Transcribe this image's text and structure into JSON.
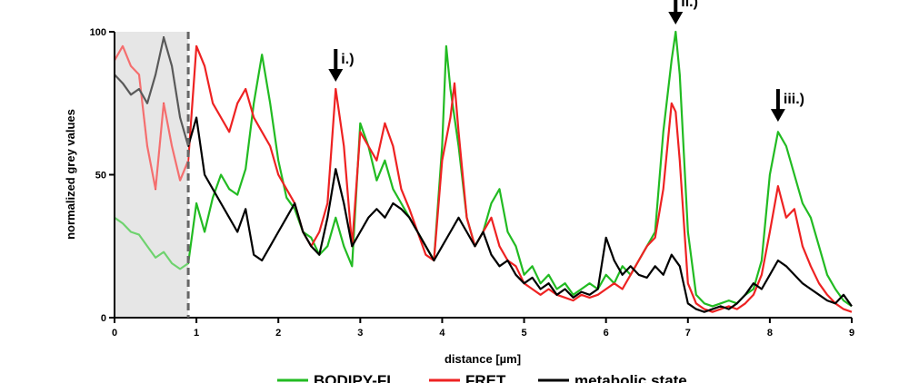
{
  "chart_data": {
    "type": "line",
    "title": "",
    "xlabel": "distance [µm]",
    "ylabel": "normalized grey values",
    "xlim": [
      0,
      9
    ],
    "ylim": [
      0,
      100
    ],
    "x_ticks": [
      "0",
      "1",
      "2",
      "3",
      "4",
      "5",
      "6",
      "7",
      "8",
      "9"
    ],
    "y_ticks": [
      "0",
      "50",
      "100"
    ],
    "grid": false,
    "legend_position": "bottom",
    "shaded_region": {
      "x_start": 0,
      "x_end": 0.9
    },
    "series": [
      {
        "name": "BODIPY-FL",
        "color": "#22bb22",
        "points": [
          [
            0,
            35
          ],
          [
            0.1,
            33
          ],
          [
            0.2,
            30
          ],
          [
            0.3,
            29
          ],
          [
            0.4,
            25
          ],
          [
            0.5,
            21
          ],
          [
            0.6,
            23
          ],
          [
            0.7,
            19
          ],
          [
            0.8,
            17
          ],
          [
            0.9,
            19
          ],
          [
            1.0,
            40
          ],
          [
            1.1,
            30
          ],
          [
            1.2,
            42
          ],
          [
            1.3,
            50
          ],
          [
            1.4,
            45
          ],
          [
            1.5,
            43
          ],
          [
            1.6,
            52
          ],
          [
            1.7,
            75
          ],
          [
            1.8,
            92
          ],
          [
            1.9,
            75
          ],
          [
            2.0,
            55
          ],
          [
            2.1,
            42
          ],
          [
            2.2,
            38
          ],
          [
            2.3,
            30
          ],
          [
            2.4,
            28
          ],
          [
            2.5,
            22
          ],
          [
            2.6,
            25
          ],
          [
            2.7,
            35
          ],
          [
            2.8,
            25
          ],
          [
            2.9,
            18
          ],
          [
            3.0,
            68
          ],
          [
            3.1,
            60
          ],
          [
            3.2,
            48
          ],
          [
            3.3,
            55
          ],
          [
            3.4,
            45
          ],
          [
            3.5,
            40
          ],
          [
            3.6,
            35
          ],
          [
            3.7,
            30
          ],
          [
            3.8,
            25
          ],
          [
            3.9,
            20
          ],
          [
            4.0,
            60
          ],
          [
            4.05,
            95
          ],
          [
            4.1,
            80
          ],
          [
            4.2,
            60
          ],
          [
            4.3,
            35
          ],
          [
            4.4,
            25
          ],
          [
            4.5,
            30
          ],
          [
            4.6,
            40
          ],
          [
            4.7,
            45
          ],
          [
            4.8,
            30
          ],
          [
            4.9,
            25
          ],
          [
            5.0,
            15
          ],
          [
            5.1,
            18
          ],
          [
            5.2,
            12
          ],
          [
            5.3,
            15
          ],
          [
            5.4,
            10
          ],
          [
            5.5,
            12
          ],
          [
            5.6,
            8
          ],
          [
            5.7,
            10
          ],
          [
            5.8,
            12
          ],
          [
            5.9,
            10
          ],
          [
            6.0,
            15
          ],
          [
            6.1,
            12
          ],
          [
            6.2,
            18
          ],
          [
            6.3,
            15
          ],
          [
            6.4,
            20
          ],
          [
            6.5,
            25
          ],
          [
            6.6,
            30
          ],
          [
            6.7,
            65
          ],
          [
            6.8,
            90
          ],
          [
            6.85,
            100
          ],
          [
            6.9,
            85
          ],
          [
            7.0,
            30
          ],
          [
            7.1,
            8
          ],
          [
            7.2,
            5
          ],
          [
            7.3,
            4
          ],
          [
            7.4,
            5
          ],
          [
            7.5,
            6
          ],
          [
            7.6,
            5
          ],
          [
            7.7,
            8
          ],
          [
            7.8,
            10
          ],
          [
            7.9,
            20
          ],
          [
            8.0,
            50
          ],
          [
            8.1,
            65
          ],
          [
            8.2,
            60
          ],
          [
            8.3,
            50
          ],
          [
            8.4,
            40
          ],
          [
            8.5,
            35
          ],
          [
            8.6,
            25
          ],
          [
            8.7,
            15
          ],
          [
            8.8,
            10
          ],
          [
            8.9,
            6
          ],
          [
            9.0,
            4
          ]
        ]
      },
      {
        "name": "FRET",
        "color": "#ee2222",
        "points": [
          [
            0,
            90
          ],
          [
            0.1,
            95
          ],
          [
            0.2,
            88
          ],
          [
            0.3,
            85
          ],
          [
            0.4,
            60
          ],
          [
            0.5,
            45
          ],
          [
            0.6,
            75
          ],
          [
            0.7,
            60
          ],
          [
            0.8,
            48
          ],
          [
            0.9,
            55
          ],
          [
            1.0,
            95
          ],
          [
            1.1,
            88
          ],
          [
            1.2,
            75
          ],
          [
            1.3,
            70
          ],
          [
            1.4,
            65
          ],
          [
            1.5,
            75
          ],
          [
            1.6,
            80
          ],
          [
            1.7,
            70
          ],
          [
            1.8,
            65
          ],
          [
            1.9,
            60
          ],
          [
            2.0,
            50
          ],
          [
            2.1,
            45
          ],
          [
            2.2,
            40
          ],
          [
            2.3,
            30
          ],
          [
            2.4,
            25
          ],
          [
            2.5,
            30
          ],
          [
            2.6,
            40
          ],
          [
            2.7,
            80
          ],
          [
            2.8,
            60
          ],
          [
            2.9,
            25
          ],
          [
            3.0,
            65
          ],
          [
            3.1,
            60
          ],
          [
            3.2,
            55
          ],
          [
            3.3,
            68
          ],
          [
            3.4,
            60
          ],
          [
            3.5,
            45
          ],
          [
            3.6,
            38
          ],
          [
            3.7,
            30
          ],
          [
            3.8,
            22
          ],
          [
            3.9,
            20
          ],
          [
            4.0,
            55
          ],
          [
            4.1,
            70
          ],
          [
            4.15,
            82
          ],
          [
            4.2,
            65
          ],
          [
            4.3,
            35
          ],
          [
            4.4,
            25
          ],
          [
            4.5,
            30
          ],
          [
            4.6,
            35
          ],
          [
            4.7,
            25
          ],
          [
            4.8,
            20
          ],
          [
            4.9,
            18
          ],
          [
            5.0,
            12
          ],
          [
            5.1,
            10
          ],
          [
            5.2,
            8
          ],
          [
            5.3,
            10
          ],
          [
            5.4,
            8
          ],
          [
            5.5,
            7
          ],
          [
            5.6,
            6
          ],
          [
            5.7,
            8
          ],
          [
            5.8,
            7
          ],
          [
            5.9,
            8
          ],
          [
            6.0,
            10
          ],
          [
            6.1,
            12
          ],
          [
            6.2,
            10
          ],
          [
            6.3,
            15
          ],
          [
            6.4,
            20
          ],
          [
            6.5,
            25
          ],
          [
            6.6,
            28
          ],
          [
            6.7,
            45
          ],
          [
            6.8,
            75
          ],
          [
            6.85,
            72
          ],
          [
            6.9,
            55
          ],
          [
            7.0,
            12
          ],
          [
            7.1,
            5
          ],
          [
            7.2,
            3
          ],
          [
            7.3,
            2
          ],
          [
            7.4,
            3
          ],
          [
            7.5,
            4
          ],
          [
            7.6,
            3
          ],
          [
            7.7,
            5
          ],
          [
            7.8,
            8
          ],
          [
            7.9,
            15
          ],
          [
            8.0,
            30
          ],
          [
            8.1,
            46
          ],
          [
            8.2,
            35
          ],
          [
            8.3,
            38
          ],
          [
            8.4,
            25
          ],
          [
            8.5,
            18
          ],
          [
            8.6,
            12
          ],
          [
            8.7,
            8
          ],
          [
            8.8,
            5
          ],
          [
            8.9,
            3
          ],
          [
            9.0,
            2
          ]
        ]
      },
      {
        "name": "metabolic state",
        "color": "#000000",
        "points": [
          [
            0,
            85
          ],
          [
            0.1,
            82
          ],
          [
            0.2,
            78
          ],
          [
            0.3,
            80
          ],
          [
            0.4,
            75
          ],
          [
            0.5,
            85
          ],
          [
            0.6,
            98
          ],
          [
            0.7,
            88
          ],
          [
            0.8,
            70
          ],
          [
            0.9,
            60
          ],
          [
            1.0,
            70
          ],
          [
            1.1,
            50
          ],
          [
            1.2,
            45
          ],
          [
            1.3,
            40
          ],
          [
            1.4,
            35
          ],
          [
            1.5,
            30
          ],
          [
            1.6,
            38
          ],
          [
            1.7,
            22
          ],
          [
            1.8,
            20
          ],
          [
            1.9,
            25
          ],
          [
            2.0,
            30
          ],
          [
            2.1,
            35
          ],
          [
            2.2,
            40
          ],
          [
            2.3,
            30
          ],
          [
            2.4,
            25
          ],
          [
            2.5,
            22
          ],
          [
            2.6,
            35
          ],
          [
            2.7,
            52
          ],
          [
            2.8,
            40
          ],
          [
            2.9,
            25
          ],
          [
            3.0,
            30
          ],
          [
            3.1,
            35
          ],
          [
            3.2,
            38
          ],
          [
            3.3,
            35
          ],
          [
            3.4,
            40
          ],
          [
            3.5,
            38
          ],
          [
            3.6,
            35
          ],
          [
            3.7,
            30
          ],
          [
            3.8,
            25
          ],
          [
            3.9,
            20
          ],
          [
            4.0,
            25
          ],
          [
            4.1,
            30
          ],
          [
            4.2,
            35
          ],
          [
            4.3,
            30
          ],
          [
            4.4,
            25
          ],
          [
            4.5,
            30
          ],
          [
            4.6,
            22
          ],
          [
            4.7,
            18
          ],
          [
            4.8,
            20
          ],
          [
            4.9,
            15
          ],
          [
            5.0,
            12
          ],
          [
            5.1,
            14
          ],
          [
            5.2,
            10
          ],
          [
            5.3,
            12
          ],
          [
            5.4,
            8
          ],
          [
            5.5,
            10
          ],
          [
            5.6,
            7
          ],
          [
            5.7,
            9
          ],
          [
            5.8,
            8
          ],
          [
            5.9,
            10
          ],
          [
            6.0,
            28
          ],
          [
            6.1,
            20
          ],
          [
            6.2,
            15
          ],
          [
            6.3,
            18
          ],
          [
            6.4,
            15
          ],
          [
            6.5,
            14
          ],
          [
            6.6,
            18
          ],
          [
            6.7,
            15
          ],
          [
            6.8,
            22
          ],
          [
            6.9,
            18
          ],
          [
            7.0,
            5
          ],
          [
            7.1,
            3
          ],
          [
            7.2,
            2
          ],
          [
            7.3,
            3
          ],
          [
            7.4,
            4
          ],
          [
            7.5,
            3
          ],
          [
            7.6,
            5
          ],
          [
            7.7,
            8
          ],
          [
            7.8,
            12
          ],
          [
            7.9,
            10
          ],
          [
            8.0,
            15
          ],
          [
            8.1,
            20
          ],
          [
            8.2,
            18
          ],
          [
            8.3,
            15
          ],
          [
            8.4,
            12
          ],
          [
            8.5,
            10
          ],
          [
            8.6,
            8
          ],
          [
            8.7,
            6
          ],
          [
            8.8,
            5
          ],
          [
            8.9,
            8
          ],
          [
            9.0,
            4
          ]
        ]
      }
    ],
    "annotations": [
      {
        "label": "i.)",
        "x": 2.7,
        "y": 80
      },
      {
        "label": "ii.)",
        "x": 6.85,
        "y": 100
      },
      {
        "label": "iii.)",
        "x": 8.1,
        "y": 66
      }
    ]
  }
}
